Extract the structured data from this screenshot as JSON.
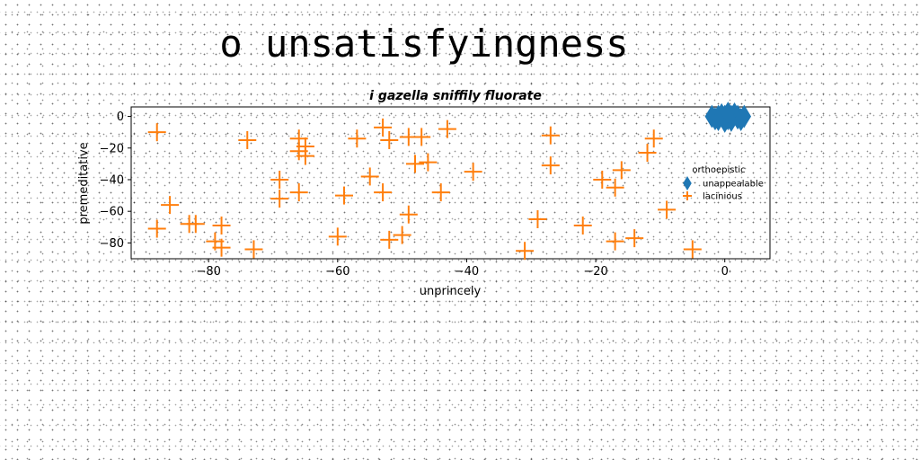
{
  "page": {
    "title": "o unsatisfyingness"
  },
  "chart_data": {
    "type": "scatter",
    "title": "i gazella sniffily fluorate",
    "xlabel": "unprincely",
    "ylabel": "premeditative",
    "xlim": [
      -92,
      7
    ],
    "ylim": [
      -90,
      6
    ],
    "xticks": [
      -80,
      -60,
      -40,
      -20,
      0
    ],
    "yticks": [
      0,
      -20,
      -40,
      -60,
      -80
    ],
    "grid": false,
    "legend": {
      "title": "orthoepistic",
      "placement": "center-right"
    },
    "series": [
      {
        "name": "unappealable",
        "marker": "thin-diamond",
        "color": "#1f77b4",
        "points": [
          [
            -2.0,
            0.0
          ],
          [
            -1.0,
            0.0
          ],
          [
            0.0,
            0.0
          ],
          [
            1.0,
            0.0
          ],
          [
            2.0,
            0.0
          ],
          [
            3.0,
            0.0
          ],
          [
            -1.5,
            -1.5
          ],
          [
            0.5,
            -1.5
          ],
          [
            2.0,
            -1.0
          ],
          [
            -0.5,
            1.0
          ],
          [
            1.5,
            1.5
          ],
          [
            0.0,
            -3.0
          ],
          [
            1.0,
            -2.5
          ],
          [
            -1.0,
            -2.0
          ],
          [
            2.5,
            -2.0
          ],
          [
            0.5,
            2.0
          ]
        ]
      },
      {
        "name": "lacinious",
        "marker": "plus",
        "color": "#ff7f0e",
        "points": [
          [
            -88,
            -10
          ],
          [
            -88,
            -71
          ],
          [
            -86,
            -56
          ],
          [
            -83,
            -68
          ],
          [
            -82,
            -68
          ],
          [
            -79,
            -79
          ],
          [
            -78,
            -83
          ],
          [
            -78,
            -69
          ],
          [
            -73,
            -84
          ],
          [
            -74,
            -15
          ],
          [
            -69,
            -40
          ],
          [
            -69,
            -52
          ],
          [
            -66,
            -48
          ],
          [
            -66,
            -14
          ],
          [
            -66,
            -22
          ],
          [
            -65,
            -25
          ],
          [
            -65,
            -19
          ],
          [
            -60,
            -76
          ],
          [
            -59,
            -50
          ],
          [
            -57,
            -14
          ],
          [
            -55,
            -38
          ],
          [
            -53,
            -48
          ],
          [
            -53,
            -7
          ],
          [
            -52,
            -15
          ],
          [
            -49,
            -13
          ],
          [
            -52,
            -78
          ],
          [
            -50,
            -75
          ],
          [
            -49,
            -62
          ],
          [
            -48,
            -30
          ],
          [
            -47,
            -13
          ],
          [
            -46,
            -29
          ],
          [
            -44,
            -48
          ],
          [
            -43,
            -8
          ],
          [
            -39,
            -35
          ],
          [
            -31,
            -85
          ],
          [
            -29,
            -65
          ],
          [
            -27,
            -12
          ],
          [
            -27,
            -31
          ],
          [
            -22,
            -69
          ],
          [
            -19,
            -40
          ],
          [
            -17,
            -45
          ],
          [
            -17,
            -79
          ],
          [
            -16,
            -34
          ],
          [
            -14,
            -77
          ],
          [
            -12,
            -23
          ],
          [
            -11,
            -14
          ],
          [
            -9,
            -59
          ],
          [
            -5,
            -84
          ]
        ]
      }
    ]
  }
}
